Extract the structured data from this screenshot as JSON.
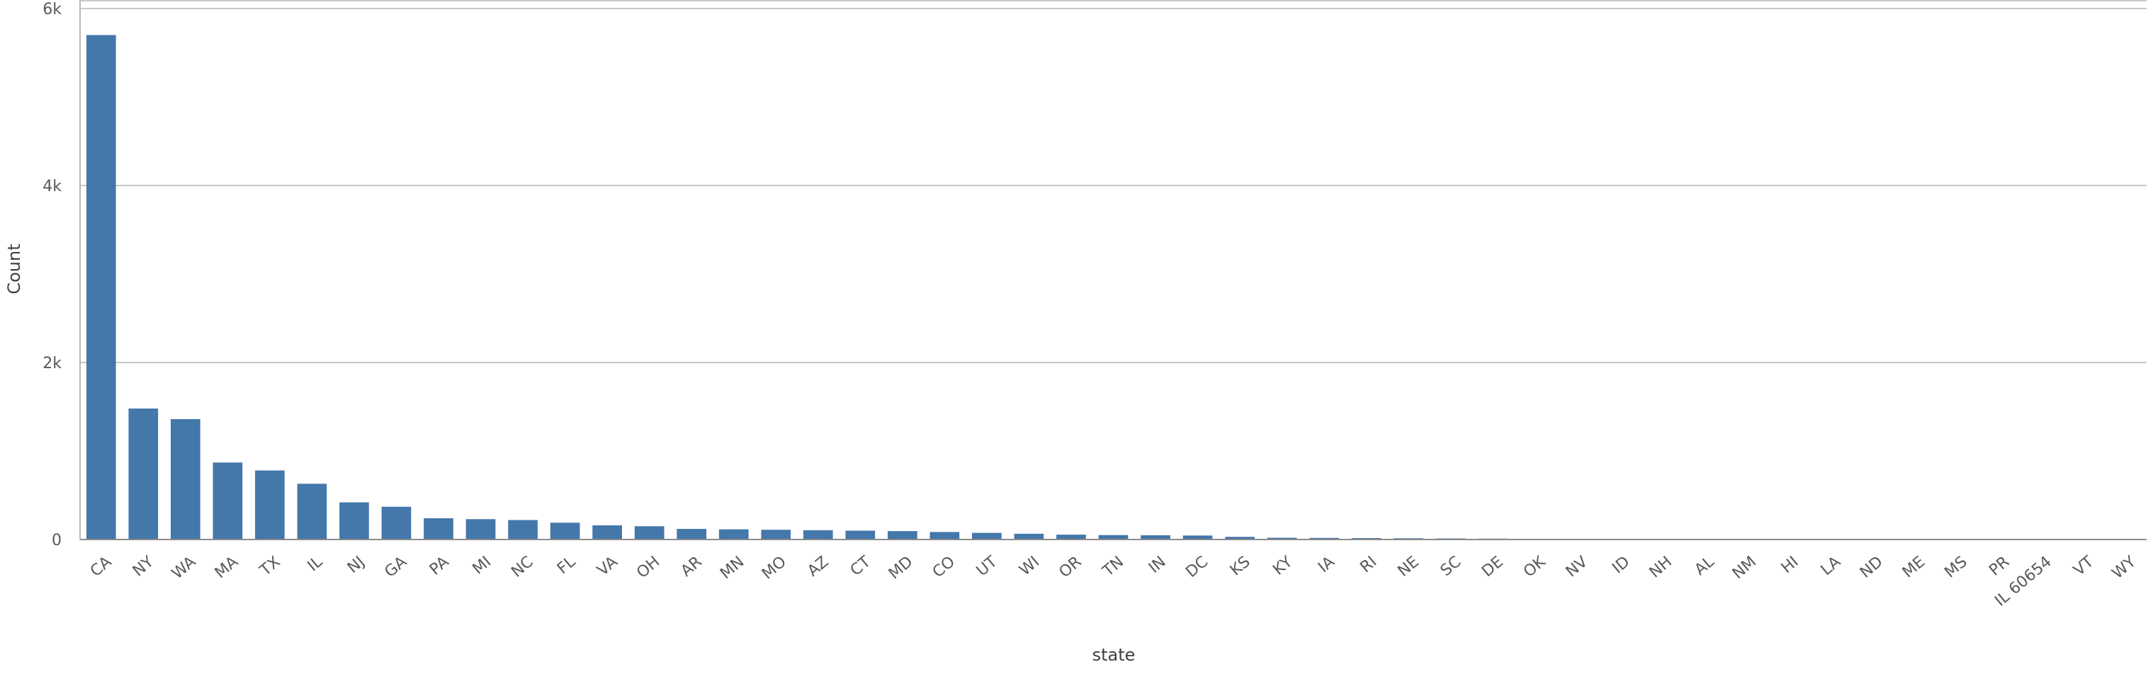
{
  "chart_data": {
    "type": "bar",
    "xlabel": "state",
    "ylabel": "Count",
    "ylim": [
      0,
      6000
    ],
    "y_ticks": [
      {
        "value": 0,
        "label": "0"
      },
      {
        "value": 2000,
        "label": "2k"
      },
      {
        "value": 4000,
        "label": "4k"
      },
      {
        "value": 6000,
        "label": "6k"
      }
    ],
    "grid": true,
    "bar_color": "#4477aa",
    "categories": [
      "CA",
      "NY",
      "WA",
      "MA",
      "TX",
      "IL",
      "NJ",
      "GA",
      "PA",
      "MI",
      "NC",
      "FL",
      "VA",
      "OH",
      "AR",
      "MN",
      "MO",
      "AZ",
      "CT",
      "MD",
      "CO",
      "UT",
      "WI",
      "OR",
      "TN",
      "IN",
      "DC",
      "KS",
      "KY",
      "IA",
      "RI",
      "NE",
      "SC",
      "DE",
      "OK",
      "NV",
      "ID",
      "NH",
      "AL",
      "NM",
      "HI",
      "LA",
      "ND",
      "ME",
      "MS",
      "PR",
      "IL 60654",
      "VT",
      "WY"
    ],
    "values": [
      5700,
      1480,
      1360,
      870,
      780,
      630,
      420,
      370,
      240,
      230,
      220,
      190,
      160,
      150,
      120,
      115,
      110,
      105,
      100,
      95,
      85,
      75,
      65,
      55,
      50,
      48,
      45,
      30,
      20,
      18,
      16,
      14,
      12,
      10,
      8,
      7,
      6,
      5,
      4,
      3,
      2,
      2,
      2,
      1,
      1,
      1,
      1,
      1,
      1
    ]
  }
}
